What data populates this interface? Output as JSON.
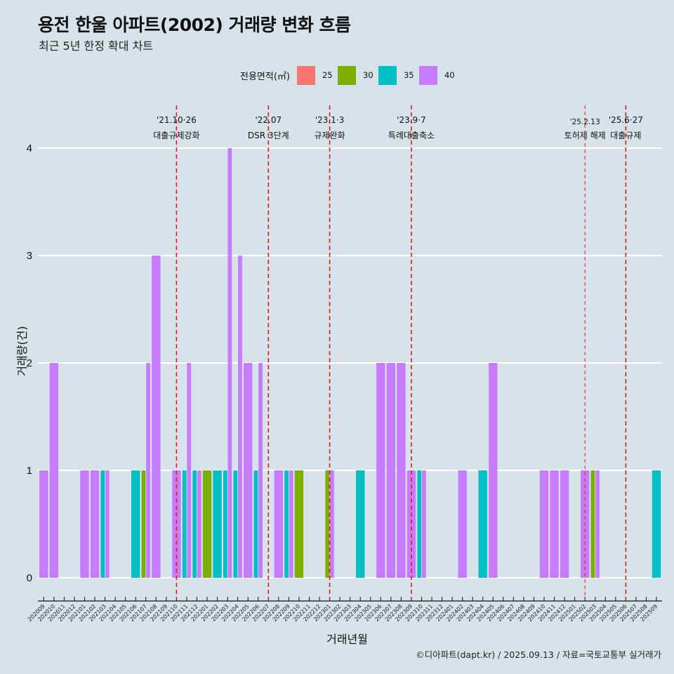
{
  "title": "용전 한울 아파트(2002) 거래량 변화 흐름",
  "subtitle": "최근 5년 한정 확대 차트",
  "footer": "©디아파트(dapt.kr) / 2025.09.13 / 자료=국토교통부 실거래가",
  "chart_data": {
    "type": "bar",
    "position": "dodge",
    "title": "용전 한울 아파트(2002) 거래량 변화 흐름",
    "subtitle": "최근 5년 한정 확대 차트",
    "xlabel": "거래년월",
    "ylabel": "거래량(건)",
    "ylim": [
      0,
      4
    ],
    "yticks": [
      0,
      1,
      2,
      3,
      4
    ],
    "grid": "horizontal",
    "legend": {
      "title": "전용면적(㎡)",
      "placement": "top",
      "entries": [
        {
          "name": "25",
          "color": "#F8766D"
        },
        {
          "name": "30",
          "color": "#7CAE00"
        },
        {
          "name": "35",
          "color": "#00BFC4"
        },
        {
          "name": "40",
          "color": "#C77CFF"
        }
      ]
    },
    "categories": [
      "202009",
      "202010",
      "202011",
      "202012",
      "202101",
      "202102",
      "202103",
      "202104",
      "202105",
      "202106",
      "202107",
      "202108",
      "202109",
      "202110",
      "202111",
      "202112",
      "202201",
      "202202",
      "202203",
      "202204",
      "202205",
      "202206",
      "202207",
      "202208",
      "202209",
      "202210",
      "202211",
      "202212",
      "202301",
      "202302",
      "202303",
      "202304",
      "202305",
      "202306",
      "202307",
      "202308",
      "202309",
      "202310",
      "202311",
      "202312",
      "202401",
      "202402",
      "202403",
      "202404",
      "202405",
      "202406",
      "202407",
      "202408",
      "202409",
      "202410",
      "202411",
      "202412",
      "202501",
      "202502",
      "202503",
      "202504",
      "202505",
      "202506",
      "202507",
      "202508",
      "202509"
    ],
    "bars": [
      {
        "month": "202009",
        "area": "40",
        "value": 1
      },
      {
        "month": "202010",
        "area": "40",
        "value": 2
      },
      {
        "month": "202101",
        "area": "40",
        "value": 1
      },
      {
        "month": "202102",
        "area": "40",
        "value": 1
      },
      {
        "month": "202103",
        "area": "35",
        "value": 1
      },
      {
        "month": "202103",
        "area": "40",
        "value": 1
      },
      {
        "month": "202106",
        "area": "35",
        "value": 1
      },
      {
        "month": "202107",
        "area": "30",
        "value": 1
      },
      {
        "month": "202107",
        "area": "40",
        "value": 2
      },
      {
        "month": "202108",
        "area": "40",
        "value": 3
      },
      {
        "month": "202110",
        "area": "40",
        "value": 1
      },
      {
        "month": "202111",
        "area": "35",
        "value": 1
      },
      {
        "month": "202111",
        "area": "40",
        "value": 2
      },
      {
        "month": "202112",
        "area": "35",
        "value": 1
      },
      {
        "month": "202112",
        "area": "40",
        "value": 1
      },
      {
        "month": "202201",
        "area": "30",
        "value": 1
      },
      {
        "month": "202202",
        "area": "35",
        "value": 1
      },
      {
        "month": "202203",
        "area": "35",
        "value": 1
      },
      {
        "month": "202203",
        "area": "40",
        "value": 4
      },
      {
        "month": "202204",
        "area": "35",
        "value": 1
      },
      {
        "month": "202204",
        "area": "40",
        "value": 3
      },
      {
        "month": "202205",
        "area": "40",
        "value": 2
      },
      {
        "month": "202206",
        "area": "35",
        "value": 1
      },
      {
        "month": "202206",
        "area": "40",
        "value": 2
      },
      {
        "month": "202208",
        "area": "40",
        "value": 1
      },
      {
        "month": "202209",
        "area": "35",
        "value": 1
      },
      {
        "month": "202209",
        "area": "40",
        "value": 1
      },
      {
        "month": "202210",
        "area": "30",
        "value": 1
      },
      {
        "month": "202301",
        "area": "30",
        "value": 1
      },
      {
        "month": "202301",
        "area": "40",
        "value": 1
      },
      {
        "month": "202304",
        "area": "35",
        "value": 1
      },
      {
        "month": "202306",
        "area": "40",
        "value": 2
      },
      {
        "month": "202307",
        "area": "40",
        "value": 2
      },
      {
        "month": "202308",
        "area": "40",
        "value": 2
      },
      {
        "month": "202309",
        "area": "40",
        "value": 1
      },
      {
        "month": "202310",
        "area": "35",
        "value": 1
      },
      {
        "month": "202310",
        "area": "40",
        "value": 1
      },
      {
        "month": "202402",
        "area": "40",
        "value": 1
      },
      {
        "month": "202404",
        "area": "35",
        "value": 1
      },
      {
        "month": "202405",
        "area": "40",
        "value": 2
      },
      {
        "month": "202410",
        "area": "40",
        "value": 1
      },
      {
        "month": "202411",
        "area": "40",
        "value": 1
      },
      {
        "month": "202412",
        "area": "40",
        "value": 1
      },
      {
        "month": "202502",
        "area": "40",
        "value": 1
      },
      {
        "month": "202503",
        "area": "30",
        "value": 1
      },
      {
        "month": "202503",
        "area": "40",
        "value": 1
      },
      {
        "month": "202509",
        "area": "35",
        "value": 1
      }
    ],
    "annotations": [
      {
        "month": "202110",
        "date": "'21.10·26",
        "label": "대출규제강화",
        "style": "dashed"
      },
      {
        "month": "202207",
        "date": "'22.07",
        "label": "DSR 3단계",
        "style": "dashed"
      },
      {
        "month": "202301",
        "date": "'23.1·3",
        "label": "규제완화",
        "style": "dashed"
      },
      {
        "month": "202309",
        "date": "'23.9·7",
        "label": "특례대출축소",
        "style": "dashed"
      },
      {
        "month": "202502",
        "date": "'25.2.13",
        "label": "토허제 해제",
        "style": "thin-dashed"
      },
      {
        "month": "202506",
        "date": "'25.6·27",
        "label": "대출규제",
        "style": "dashed"
      }
    ],
    "annotation_color": "#E41A1C"
  }
}
